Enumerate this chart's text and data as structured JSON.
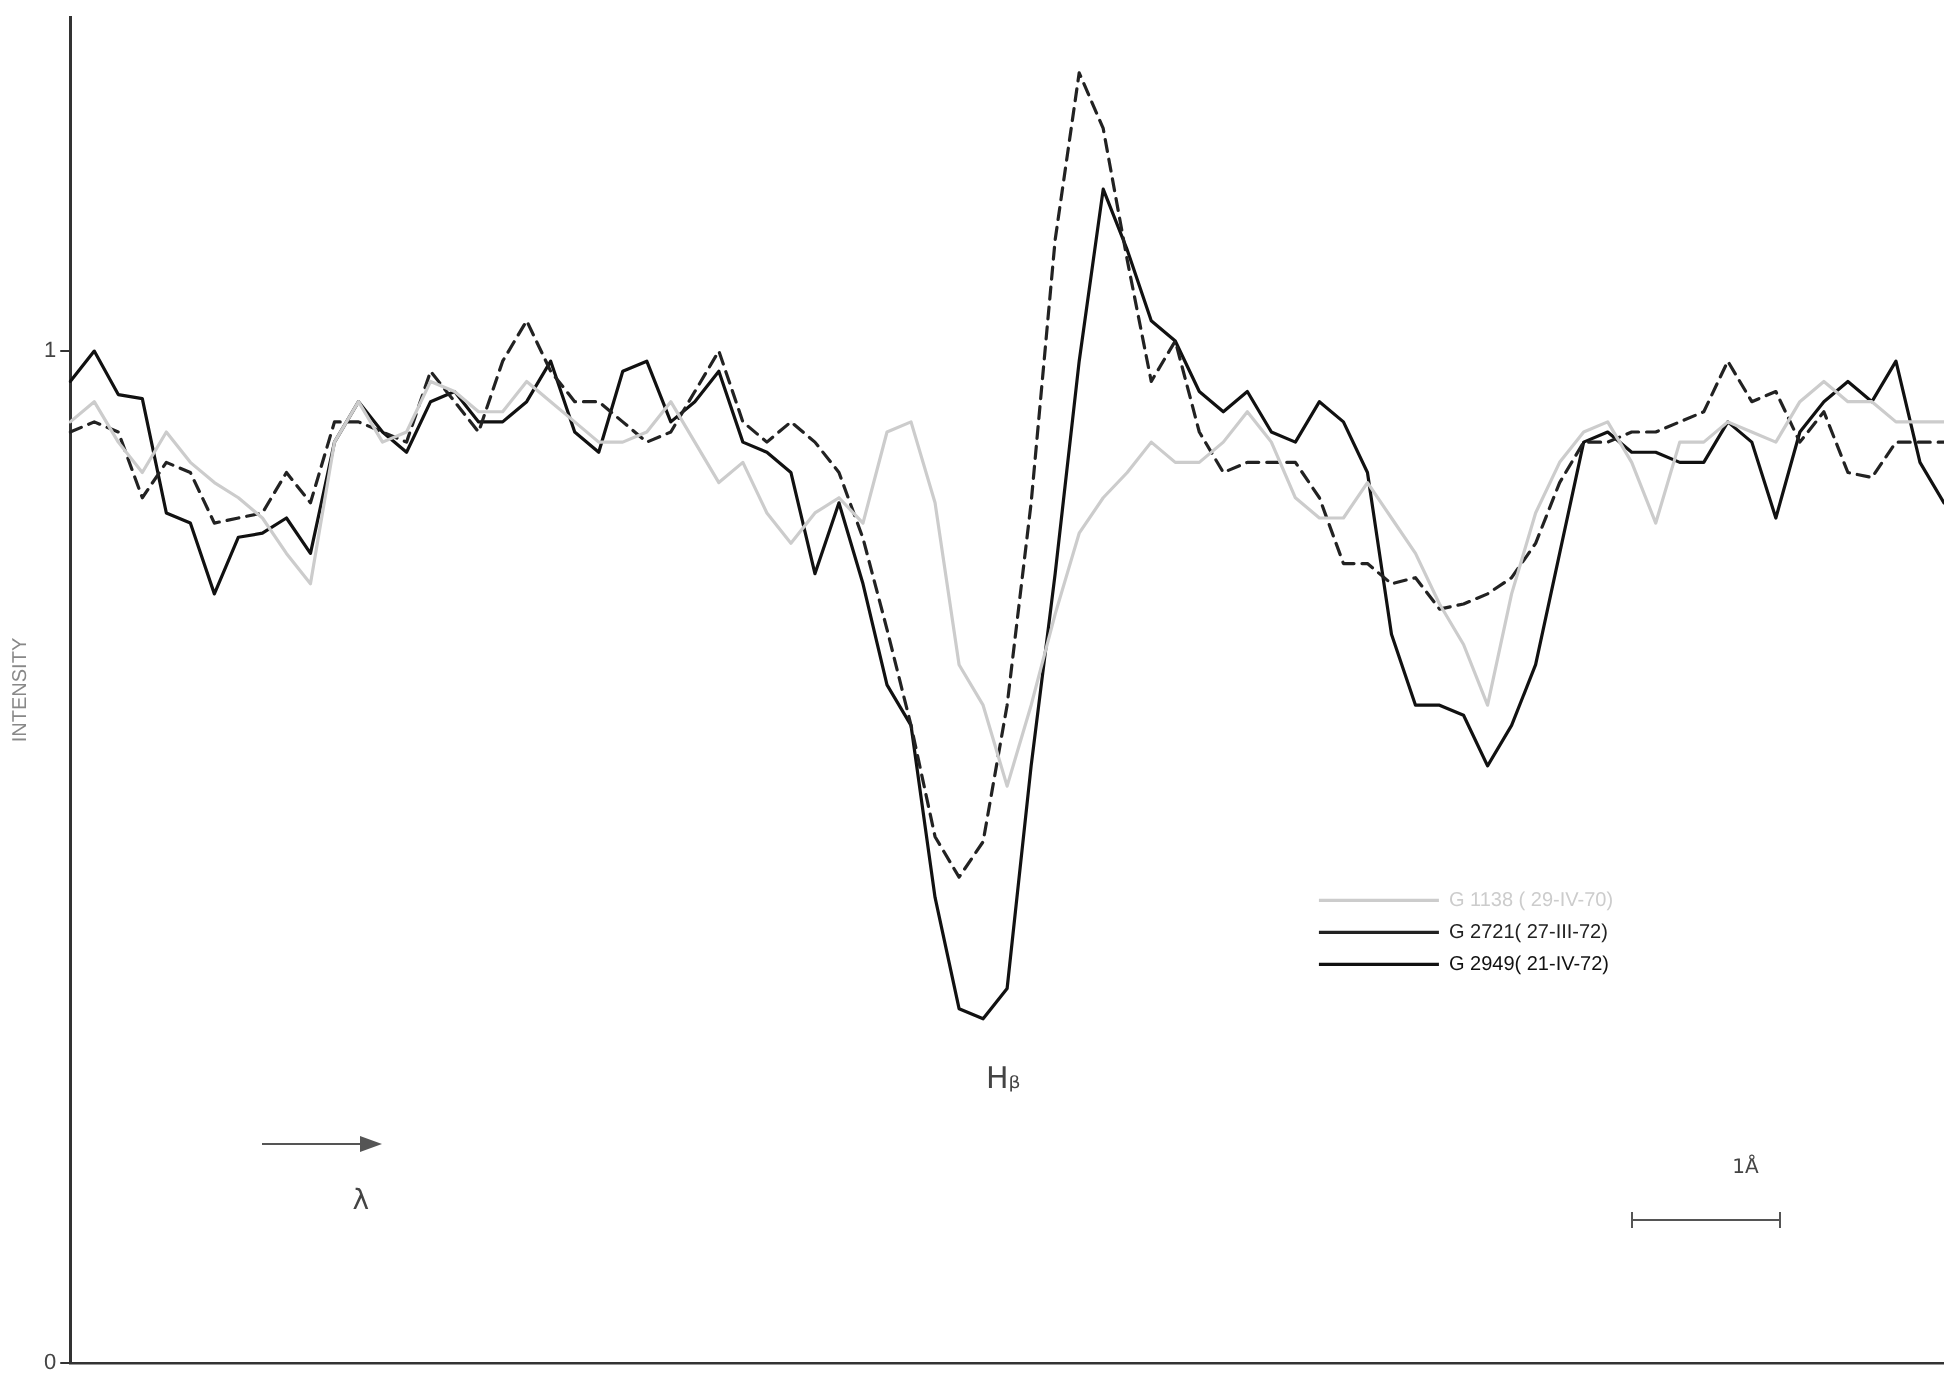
{
  "chart_data": {
    "type": "line",
    "ylabel": "INTENSITY",
    "ylim": [
      0,
      1.33
    ],
    "yticks": [
      0,
      1
    ],
    "tick_labels": "y",
    "grid": false,
    "legend": "right",
    "line_style": "solid",
    "marker": "none",
    "annotations": [
      "Hᵦ",
      "λ",
      "1Å"
    ],
    "categories": [
      null,
      null,
      null,
      null,
      null,
      null,
      null,
      null,
      null,
      null,
      null,
      null,
      null,
      null,
      null,
      null,
      null,
      null,
      null,
      null,
      null,
      null,
      null,
      null,
      null,
      null,
      null,
      null,
      null,
      null,
      null,
      null,
      null,
      null,
      null,
      null,
      null,
      null,
      null,
      null,
      null,
      null,
      null,
      null,
      null,
      null,
      null,
      null,
      null,
      null,
      null,
      null,
      null,
      null,
      null,
      null,
      null,
      null,
      null,
      null,
      null,
      null,
      null,
      null,
      null,
      null,
      null,
      null,
      null,
      null,
      null,
      null,
      null,
      null,
      null,
      null,
      null,
      null,
      null
    ],
    "series": [
      {
        "name": "G 1138 ( 29-IV-70)",
        "color": "#cccccc",
        "values": [
          0.93,
          0.95,
          0.91,
          0.88,
          0.92,
          0.89,
          0.87,
          0.855,
          0.835,
          0.8,
          0.77,
          0.91,
          0.95,
          0.91,
          0.92,
          0.97,
          0.96,
          0.94,
          0.94,
          0.97,
          0.95,
          0.93,
          0.91,
          0.91,
          0.92,
          0.95,
          0.91,
          0.87,
          0.89,
          0.84,
          0.81,
          0.84,
          0.855,
          0.83,
          0.92,
          0.93,
          0.85,
          0.69,
          0.65,
          0.57,
          0.65,
          0.74,
          0.82,
          0.855,
          0.88,
          0.91,
          0.89,
          0.89,
          0.91,
          0.94,
          0.91,
          0.855,
          0.835,
          0.835,
          0.87,
          0.835,
          0.8,
          0.75,
          0.71,
          0.65,
          0.76,
          0.84,
          0.89,
          0.92,
          0.93,
          0.89,
          0.83,
          0.91,
          0.91,
          0.93,
          0.92,
          0.91,
          0.95,
          0.97,
          0.95,
          0.95,
          0.93,
          0.93,
          0.93
        ]
      },
      {
        "name": "G 2721( 27-III-72)",
        "color": "#222222",
        "line_style": "dashed",
        "values": [
          0.92,
          0.93,
          0.92,
          0.855,
          0.89,
          0.88,
          0.83,
          0.835,
          0.84,
          0.88,
          0.85,
          0.93,
          0.93,
          0.92,
          0.91,
          0.98,
          0.95,
          0.92,
          0.99,
          1.03,
          0.98,
          0.95,
          0.95,
          0.93,
          0.91,
          0.92,
          0.96,
          1.0,
          0.93,
          0.91,
          0.93,
          0.91,
          0.88,
          0.815,
          0.725,
          0.63,
          0.52,
          0.48,
          0.515,
          0.65,
          0.85,
          1.11,
          1.275,
          1.22,
          1.09,
          0.97,
          1.01,
          0.92,
          0.88,
          0.89,
          0.89,
          0.89,
          0.855,
          0.79,
          0.79,
          0.77,
          0.776,
          0.745,
          0.75,
          0.76,
          0.776,
          0.81,
          0.87,
          0.91,
          0.91,
          0.92,
          0.92,
          0.93,
          0.94,
          0.99,
          0.95,
          0.96,
          0.91,
          0.94,
          0.88,
          0.875,
          0.91,
          0.91,
          0.91
        ]
      },
      {
        "name": "G 2949( 21-IV-72)",
        "color": "#111111",
        "values": [
          0.97,
          1.0,
          0.957,
          0.953,
          0.84,
          0.83,
          0.76,
          0.816,
          0.82,
          0.835,
          0.8,
          0.91,
          0.95,
          0.92,
          0.9,
          0.95,
          0.96,
          0.93,
          0.93,
          0.95,
          0.99,
          0.92,
          0.9,
          0.98,
          0.99,
          0.93,
          0.95,
          0.98,
          0.91,
          0.9,
          0.88,
          0.78,
          0.85,
          0.77,
          0.67,
          0.63,
          0.46,
          0.35,
          0.34,
          0.37,
          0.59,
          0.78,
          0.99,
          1.16,
          1.1,
          1.03,
          1.01,
          0.96,
          0.94,
          0.96,
          0.92,
          0.91,
          0.95,
          0.93,
          0.88,
          0.72,
          0.65,
          0.65,
          0.64,
          0.59,
          0.63,
          0.69,
          0.8,
          0.91,
          0.92,
          0.9,
          0.9,
          0.89,
          0.89,
          0.93,
          0.91,
          0.835,
          0.92,
          0.95,
          0.97,
          0.95,
          0.99,
          0.89,
          0.85
        ]
      }
    ]
  }
}
